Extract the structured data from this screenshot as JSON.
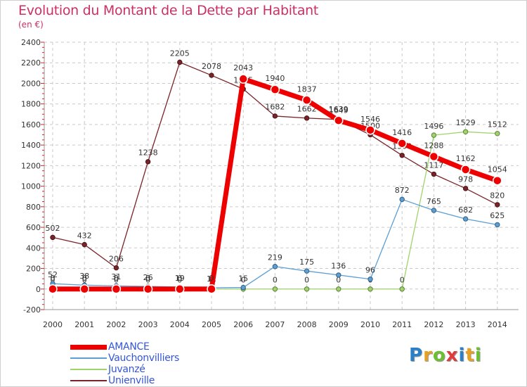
{
  "header": {
    "title": "Evolution du Montant de la Dette par Habitant",
    "unit": "(en €)"
  },
  "branding": {
    "logo_text": "Proxiti",
    "logo_colors": [
      "#2a7fc9",
      "#e8a020",
      "#6bbf30",
      "#e23a3a",
      "#2a7fc9",
      "#e8a020",
      "#6bbf30"
    ]
  },
  "chart_data": {
    "type": "line",
    "title": "Evolution du Montant de la Dette par Habitant",
    "subtitle": "(en €)",
    "xlabel": "",
    "ylabel": "",
    "x": [
      2000,
      2001,
      2002,
      2003,
      2004,
      2005,
      2006,
      2007,
      2008,
      2009,
      2010,
      2011,
      2012,
      2013,
      2014
    ],
    "x_tick_labels": [
      "2000",
      "2001",
      "2002",
      "2003",
      "2004",
      "2005",
      "2006",
      "2007",
      "2008",
      "2009",
      "2010",
      "2011",
      "2012",
      "2013",
      "2014"
    ],
    "ylim": [
      -200,
      2400
    ],
    "y_ticks": [
      -200,
      0,
      200,
      400,
      600,
      800,
      1000,
      1200,
      1400,
      1600,
      1800,
      2000,
      2200,
      2400
    ],
    "grid": true,
    "legend_position": "bottom-left",
    "series": [
      {
        "name": "Unienville",
        "color": "#7a2328",
        "values": [
          502,
          432,
          206,
          1238,
          2205,
          2078,
          1945,
          1682,
          1662,
          1649,
          1500,
          1300,
          1117,
          978,
          820
        ],
        "labels": [
          "502",
          "432",
          "206",
          "1238",
          "2205",
          "2078",
          "1945",
          "1682",
          "1662",
          "1649",
          "1500",
          "1300",
          "1117",
          "978",
          "820"
        ]
      },
      {
        "name": "Juvanzé",
        "color": "#9ed46a",
        "values": [
          0,
          0,
          0,
          0,
          0,
          0,
          0,
          0,
          0,
          0,
          0,
          0,
          1496,
          1529,
          1512
        ],
        "labels": [
          "0",
          "0",
          "0",
          "0",
          "0",
          "0",
          "0",
          "0",
          "0",
          "0",
          "0",
          "0",
          "1496",
          "1529",
          "1512"
        ]
      },
      {
        "name": "Vauchonvilliers",
        "color": "#5b9fd5",
        "values": [
          52,
          38,
          31,
          26,
          19,
          12,
          15,
          219,
          175,
          136,
          96,
          872,
          765,
          682,
          625
        ],
        "labels": [
          "52",
          "38",
          "31",
          "26",
          "19",
          "12",
          "15",
          "219",
          "175",
          "136",
          "96",
          "872",
          "765",
          "682",
          "625"
        ]
      },
      {
        "name": "AMANCE",
        "color": "#ee0000",
        "values": [
          0,
          0,
          0,
          0,
          0,
          0,
          2043,
          1940,
          1837,
          1639,
          1546,
          1416,
          1288,
          1162,
          1054
        ],
        "labels": [
          "0",
          "0",
          "0",
          "0",
          "0",
          "0",
          "2043",
          "1940",
          "1837",
          "1639",
          "1546",
          "1416",
          "1288",
          "1162",
          "1054"
        ]
      }
    ],
    "legend": [
      "AMANCE",
      "Vauchonvilliers",
      "Juvanzé",
      "Unienville"
    ]
  },
  "legend_items": [
    {
      "label": "AMANCE",
      "color": "#ee0000",
      "text_color": "#3355dd"
    },
    {
      "label": "Vauchonvilliers",
      "color": "#5b9fd5",
      "text_color": "#3355dd"
    },
    {
      "label": "Juvanzé",
      "color": "#9ed46a",
      "text_color": "#3355dd"
    },
    {
      "label": "Unienville",
      "color": "#7a2328",
      "text_color": "#3355dd"
    }
  ]
}
